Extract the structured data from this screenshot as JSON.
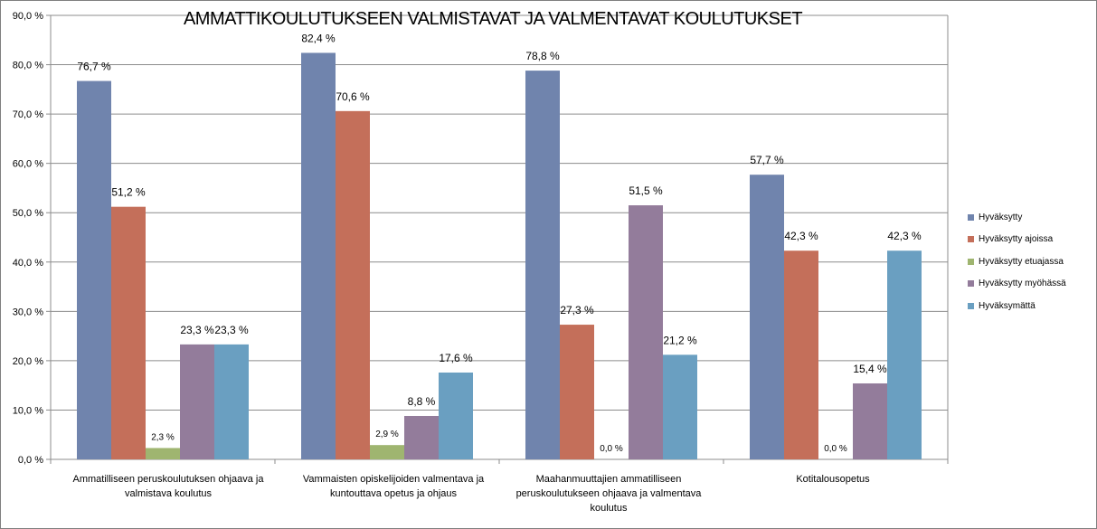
{
  "chart_data": {
    "type": "bar",
    "title": "AMMATTIKOULUTUKSEEN VALMISTAVAT JA VALMENTAVAT KOULUTUKSET",
    "xlabel": "",
    "ylabel": "",
    "ylim": [
      0,
      90
    ],
    "yticks": [
      0,
      10,
      20,
      30,
      40,
      50,
      60,
      70,
      80,
      90
    ],
    "ytick_labels": [
      "0,0 %",
      "10,0 %",
      "20,0 %",
      "30,0 %",
      "40,0 %",
      "50,0 %",
      "60,0 %",
      "70,0 %",
      "80,0 %",
      "90,0 %"
    ],
    "grid": true,
    "legend_position": "right",
    "categories": [
      "Ammatilliseen peruskoulutuksen ohjaava  ja valmistava  koulutus",
      "Vammaisten  opiskelijoiden  valmentava ja kuntouttava opetus ja ohjaus",
      "Maahanmuuttajien  ammatilliseen peruskoulutukseen ohjaava  ja valmentava koulutus",
      "Kotitalousopetus"
    ],
    "series": [
      {
        "name": "Hyväksytty",
        "color": "#7084ad",
        "values": [
          76.7,
          82.4,
          78.8,
          57.7
        ],
        "labels": [
          "76,7 %",
          "82,4 %",
          "78,8 %",
          "57,7 %"
        ]
      },
      {
        "name": "Hyväksytty ajoissa",
        "color": "#c46f5a",
        "values": [
          51.2,
          70.6,
          27.3,
          42.3
        ],
        "labels": [
          "51,2 %",
          "70,6 %",
          "27,3 %",
          "42,3 %"
        ]
      },
      {
        "name": "Hyväksytty etuajassa",
        "color": "#9fb570",
        "values": [
          2.3,
          2.9,
          0.0,
          0.0
        ],
        "labels": [
          "2,3 %",
          "2,9 %",
          "0,0 %",
          "0,0 %"
        ]
      },
      {
        "name": "Hyväksytty myöhässä",
        "color": "#937c9b",
        "values": [
          23.3,
          8.8,
          51.5,
          15.4
        ],
        "labels": [
          "23,3 %",
          "8,8 %",
          "51,5 %",
          "15,4 %"
        ]
      },
      {
        "name": "Hyväksymättä",
        "color": "#6a9fc1",
        "values": [
          23.3,
          17.6,
          21.2,
          42.3
        ],
        "labels": [
          "23,3 %",
          "17,6 %",
          "21,2 %",
          "42,3 %"
        ]
      }
    ]
  }
}
